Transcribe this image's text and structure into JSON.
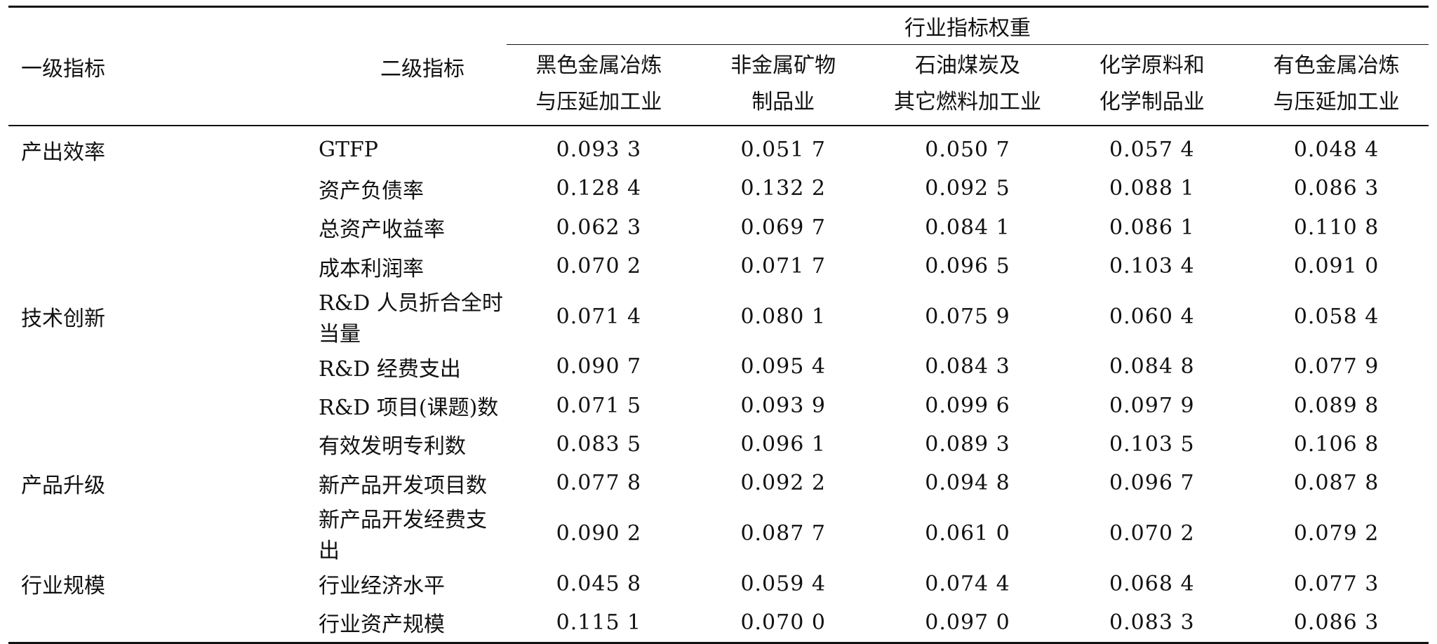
{
  "header": {
    "col_level1": "一级指标",
    "col_level2": "二级指标",
    "group_title": "行业指标权重",
    "industries": [
      {
        "line1": "黑色金属冶炼",
        "line2": "与压延加工业"
      },
      {
        "line1": "非金属矿物",
        "line2": "制品业"
      },
      {
        "line1": "石油煤炭及",
        "line2": "其它燃料加工业"
      },
      {
        "line1": "化学原料和",
        "line2": "化学制品业"
      },
      {
        "line1": "有色金属冶炼",
        "line2": "与压延加工业"
      }
    ]
  },
  "rows": [
    {
      "level1": "产出效率",
      "level2": "GTFP",
      "values": [
        "0.093 3",
        "0.051 7",
        "0.050 7",
        "0.057 4",
        "0.048 4"
      ]
    },
    {
      "level1": "",
      "level2": "资产负债率",
      "values": [
        "0.128 4",
        "0.132 2",
        "0.092 5",
        "0.088 1",
        "0.086 3"
      ]
    },
    {
      "level1": "",
      "level2": "总资产收益率",
      "values": [
        "0.062 3",
        "0.069 7",
        "0.084 1",
        "0.086 1",
        "0.110 8"
      ]
    },
    {
      "level1": "",
      "level2": "成本利润率",
      "values": [
        "0.070 2",
        "0.071 7",
        "0.096 5",
        "0.103 4",
        "0.091 0"
      ]
    },
    {
      "level1": "技术创新",
      "level2": "R&D 人员折合全时当量",
      "values": [
        "0.071 4",
        "0.080 1",
        "0.075 9",
        "0.060 4",
        "0.058 4"
      ]
    },
    {
      "level1": "",
      "level2": "R&D 经费支出",
      "values": [
        "0.090 7",
        "0.095 4",
        "0.084 3",
        "0.084 8",
        "0.077 9"
      ]
    },
    {
      "level1": "",
      "level2": "R&D 项目(课题)数",
      "values": [
        "0.071 5",
        "0.093 9",
        "0.099 6",
        "0.097 9",
        "0.089 8"
      ]
    },
    {
      "level1": "",
      "level2": "有效发明专利数",
      "values": [
        "0.083 5",
        "0.096 1",
        "0.089 3",
        "0.103 5",
        "0.106 8"
      ]
    },
    {
      "level1": "产品升级",
      "level2": "新产品开发项目数",
      "values": [
        "0.077 8",
        "0.092 2",
        "0.094 8",
        "0.096 7",
        "0.087 8"
      ]
    },
    {
      "level1": "",
      "level2": "新产品开发经费支出",
      "values": [
        "0.090 2",
        "0.087 7",
        "0.061 0",
        "0.070 2",
        "0.079 2"
      ]
    },
    {
      "level1": "行业规模",
      "level2": "行业经济水平",
      "values": [
        "0.045 8",
        "0.059 4",
        "0.074 4",
        "0.068 4",
        "0.077 3"
      ]
    },
    {
      "level1": "",
      "level2": "行业资产规模",
      "values": [
        "0.115 1",
        "0.070 0",
        "0.097 0",
        "0.083 3",
        "0.086 3"
      ]
    }
  ]
}
